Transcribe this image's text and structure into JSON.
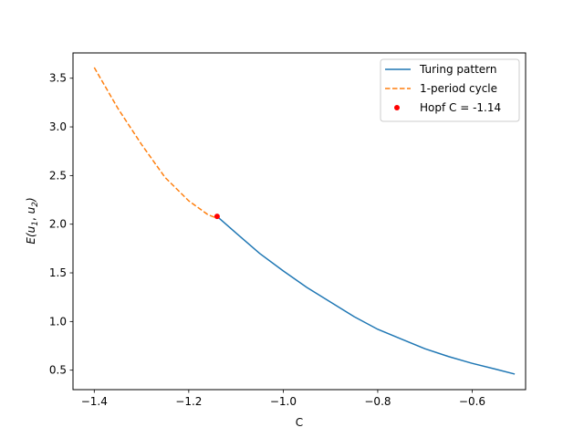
{
  "chart_data": {
    "type": "line",
    "xlabel": "C",
    "ylabel_base": "E(",
    "ylabel_u1": "u",
    "ylabel_sub1": "1",
    "ylabel_sep": ", ",
    "ylabel_u2": "u",
    "ylabel_sub2": "2",
    "ylabel_end": ")",
    "xlim": [
      -1.445,
      -0.487
    ],
    "ylim": [
      0.3,
      3.76
    ],
    "xticks": [
      -1.4,
      -1.2,
      -1.0,
      -0.8,
      -0.6
    ],
    "xtick_labels": [
      "−1.4",
      "−1.2",
      "−1.0",
      "−0.8",
      "−0.6"
    ],
    "yticks": [
      0.5,
      1.0,
      1.5,
      2.0,
      2.5,
      3.0,
      3.5
    ],
    "ytick_labels": [
      "0.5",
      "1.0",
      "1.5",
      "2.0",
      "2.5",
      "3.0",
      "3.5"
    ],
    "grid": false,
    "legend_position": "top-right",
    "series": [
      {
        "name": "Turing pattern",
        "style": "solid",
        "color": "#1f77b4",
        "x": [
          -1.14,
          -1.1,
          -1.05,
          -1.0,
          -0.95,
          -0.9,
          -0.85,
          -0.8,
          -0.75,
          -0.7,
          -0.65,
          -0.6,
          -0.55,
          -0.51
        ],
        "y": [
          2.08,
          1.91,
          1.7,
          1.52,
          1.35,
          1.2,
          1.05,
          0.92,
          0.82,
          0.72,
          0.64,
          0.57,
          0.51,
          0.46
        ]
      },
      {
        "name": "1-period cycle",
        "style": "dashed",
        "color": "#ff7f0e",
        "x": [
          -1.4,
          -1.35,
          -1.3,
          -1.25,
          -1.2,
          -1.16,
          -1.14
        ],
        "y": [
          3.61,
          3.19,
          2.82,
          2.48,
          2.24,
          2.1,
          2.06
        ]
      }
    ],
    "points": [
      {
        "name": "Hopf C = -1.14",
        "color": "#ff0000",
        "x": -1.14,
        "y": 2.08
      }
    ]
  }
}
